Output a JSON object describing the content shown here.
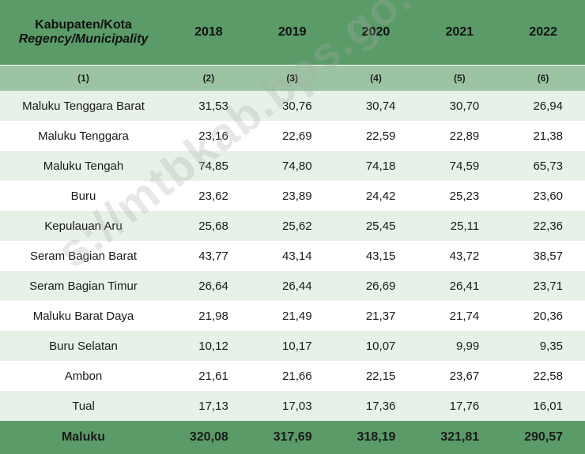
{
  "header": {
    "region_label": "Kabupaten/Kota",
    "region_label_en": "Regency/Municipality",
    "years": [
      "2018",
      "2019",
      "2020",
      "2021",
      "2022"
    ],
    "column_numbers": [
      "(1)",
      "(2)",
      "(3)",
      "(4)",
      "(5)",
      "(6)"
    ]
  },
  "rows": [
    {
      "region": "Maluku Tenggara Barat",
      "values": [
        "31,53",
        "30,76",
        "30,74",
        "30,70",
        "26,94"
      ]
    },
    {
      "region": "Maluku Tenggara",
      "values": [
        "23,16",
        "22,69",
        "22,59",
        "22,89",
        "21,38"
      ]
    },
    {
      "region": "Maluku Tengah",
      "values": [
        "74,85",
        "74,80",
        "74,18",
        "74,59",
        "65,73"
      ]
    },
    {
      "region": "Buru",
      "values": [
        "23,62",
        "23,89",
        "24,42",
        "25,23",
        "23,60"
      ]
    },
    {
      "region": "Kepulauan Aru",
      "values": [
        "25,68",
        "25,62",
        "25,45",
        "25,11",
        "22,36"
      ]
    },
    {
      "region": "Seram Bagian Barat",
      "values": [
        "43,77",
        "43,14",
        "43,15",
        "43,72",
        "38,57"
      ]
    },
    {
      "region": "Seram Bagian Timur",
      "values": [
        "26,64",
        "26,44",
        "26,69",
        "26,41",
        "23,71"
      ]
    },
    {
      "region": "Maluku Barat Daya",
      "values": [
        "21,98",
        "21,49",
        "21,37",
        "21,74",
        "20,36"
      ]
    },
    {
      "region": "Buru Selatan",
      "values": [
        "10,12",
        "10,17",
        "10,07",
        "9,99",
        "9,35"
      ]
    },
    {
      "region": "Ambon",
      "values": [
        "21,61",
        "21,66",
        "22,15",
        "23,67",
        "22,58"
      ]
    },
    {
      "region": "Tual",
      "values": [
        "17,13",
        "17,03",
        "17,36",
        "17,76",
        "16,01"
      ]
    }
  ],
  "total": {
    "region": "Maluku",
    "values": [
      "320,08",
      "317,69",
      "318,19",
      "321,81",
      "290,57"
    ]
  },
  "watermark": "s://mtbkab.bps.go.id"
}
